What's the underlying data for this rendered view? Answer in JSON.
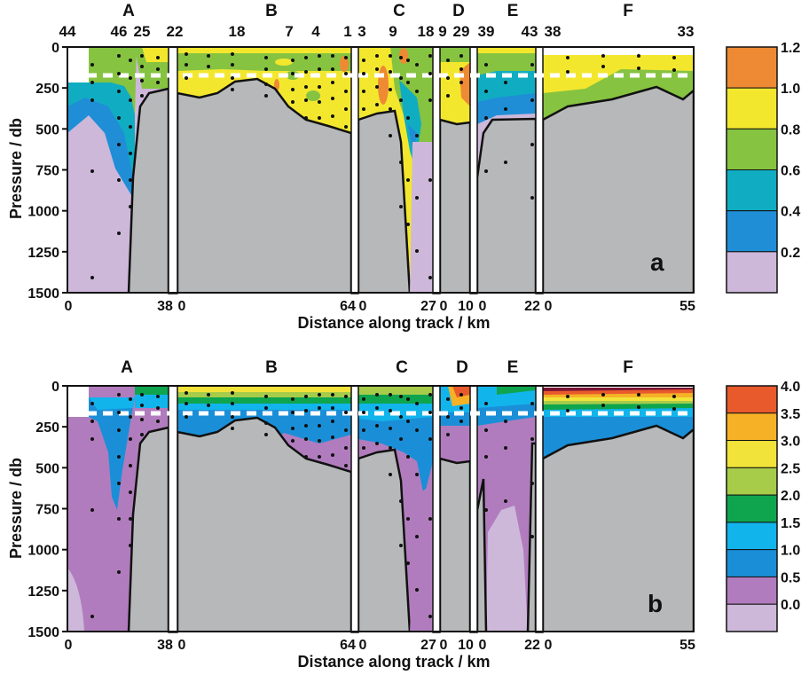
{
  "chart_data": [
    {
      "type": "heatmap",
      "panel_label": "a",
      "xlabel": "Distance along track / km",
      "ylabel": "Pressure / db",
      "ylim": [
        1500,
        0
      ],
      "yticks": [
        "0",
        "250",
        "500",
        "750",
        "1000",
        "1250",
        "1500"
      ],
      "colorbar_ticks": [
        "1.2",
        "1.0",
        "0.8",
        "0.6",
        "0.4",
        "0.2"
      ],
      "colorbar_colors": [
        "#ee8a33",
        "#f3e72e",
        "#86c340",
        "#10adc2",
        "#1f8ed6",
        "#cdb8da"
      ],
      "dashed_line_pressure": 170,
      "sections": [
        {
          "name": "A",
          "stations": [
            "44",
            "46",
            "25"
          ],
          "x_ticks": [
            "0",
            "38"
          ],
          "bottom_depth": [
            1500,
            1500,
            900,
            300,
            230
          ]
        },
        {
          "name": "B",
          "stations": [
            "22",
            "18",
            "7",
            "4",
            "1"
          ],
          "x_ticks": [
            "0",
            "64"
          ],
          "bottom_depth": [
            280,
            250,
            180,
            320,
            430,
            560
          ]
        },
        {
          "name": "C",
          "stations": [
            "3",
            "9",
            "18"
          ],
          "x_ticks": [
            "0",
            "27"
          ],
          "bottom_depth": [
            500,
            420,
            700,
            1500
          ]
        },
        {
          "name": "D",
          "stations": [
            "9",
            "29"
          ],
          "x_ticks": [
            "0",
            "10"
          ],
          "bottom_depth": [
            500,
            450,
            500
          ]
        },
        {
          "name": "E",
          "stations": [
            "39",
            "43"
          ],
          "x_ticks": [
            "0",
            "22"
          ],
          "bottom_depth": [
            1500,
            500,
            420,
            400
          ]
        },
        {
          "name": "F",
          "stations": [
            "38",
            "33"
          ],
          "x_ticks": [
            "0",
            "55"
          ],
          "bottom_depth": [
            430,
            300,
            260,
            210,
            360
          ]
        }
      ]
    },
    {
      "type": "heatmap",
      "panel_label": "b",
      "xlabel": "Distance along track / km",
      "ylabel": "Pressure / db",
      "ylim": [
        1500,
        0
      ],
      "yticks": [
        "0",
        "250",
        "500",
        "750",
        "1000",
        "1250",
        "1500"
      ],
      "colorbar_ticks": [
        "4.0",
        "3.5",
        "3.0",
        "2.5",
        "2.0",
        "1.5",
        "1.0",
        "0.5",
        "0.0"
      ],
      "colorbar_colors": [
        "#e85a2c",
        "#f6b126",
        "#f2e33a",
        "#a6cc4a",
        "#0ea54e",
        "#12b4ec",
        "#1a8fd8",
        "#b17cbd",
        "#cdb8da"
      ],
      "dashed_line_pressure": 170,
      "sections": [
        {
          "name": "A",
          "x_ticks": [
            "0",
            "38"
          ]
        },
        {
          "name": "B",
          "x_ticks": [
            "0",
            "64"
          ]
        },
        {
          "name": "C",
          "x_ticks": [
            "0",
            "27"
          ]
        },
        {
          "name": "D",
          "x_ticks": [
            "0",
            "10"
          ]
        },
        {
          "name": "E",
          "x_ticks": [
            "0",
            "22"
          ]
        },
        {
          "name": "F",
          "x_ticks": [
            "0",
            "55"
          ]
        }
      ]
    }
  ],
  "panels": {
    "a": {
      "label": "a",
      "ylabel": "Pressure / db",
      "xlabel": "Distance along track / km",
      "sections": [
        "A",
        "B",
        "C",
        "D",
        "E",
        "F"
      ],
      "stations": [
        "44",
        "46",
        "25",
        "22",
        "18",
        "7",
        "4",
        "1",
        "3",
        "9",
        "18",
        "9",
        "29",
        "39",
        "43",
        "38",
        "33"
      ],
      "xticks": [
        "0",
        "38",
        "0",
        "64",
        "0",
        "27",
        "0",
        "10",
        "0",
        "22",
        "0",
        "55"
      ],
      "yticks": [
        "0",
        "250",
        "500",
        "750",
        "1000",
        "1250",
        "1500"
      ],
      "cbar": [
        "1.2",
        "1.0",
        "0.8",
        "0.6",
        "0.4",
        "0.2"
      ]
    },
    "b": {
      "label": "b",
      "ylabel": "Pressure / db",
      "xlabel": "Distance along track / km",
      "sections": [
        "A",
        "B",
        "C",
        "D",
        "E",
        "F"
      ],
      "xticks": [
        "0",
        "38",
        "0",
        "64",
        "0",
        "27",
        "0",
        "10",
        "0",
        "22",
        "0",
        "55"
      ],
      "yticks": [
        "0",
        "250",
        "500",
        "750",
        "1000",
        "1250",
        "1500"
      ],
      "cbar": [
        "4.0",
        "3.5",
        "3.0",
        "2.5",
        "2.0",
        "1.5",
        "1.0",
        "0.5",
        "0.0"
      ]
    }
  }
}
